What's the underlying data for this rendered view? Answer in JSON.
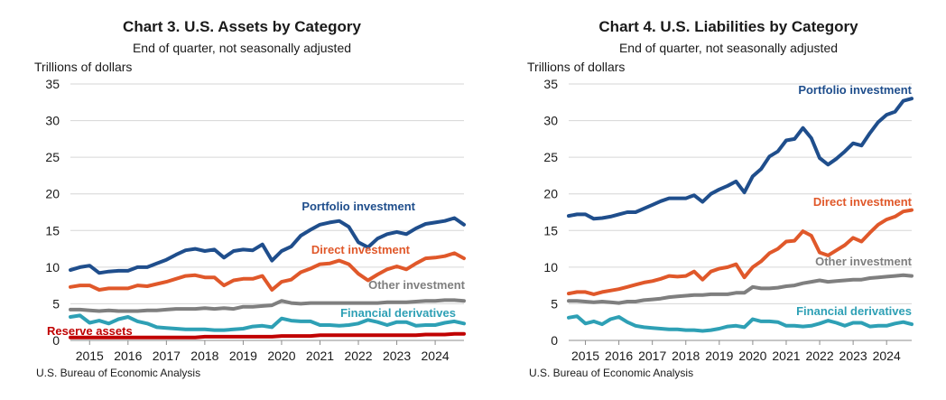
{
  "chart_data": [
    {
      "type": "line",
      "title": "Chart 3. U.S. Assets by Category",
      "subtitle": "End of quarter, not seasonally adjusted",
      "ylabel": "Trillions of dollars",
      "source": "U.S. Bureau of Economic Analysis",
      "ylim": [
        0,
        35
      ],
      "yticks": [
        0,
        5,
        10,
        15,
        20,
        25,
        30,
        35
      ],
      "xlim": [
        2014.5,
        2024.75
      ],
      "xticks": [
        2015,
        2016,
        2017,
        2018,
        2019,
        2020,
        2021,
        2022,
        2023,
        2024
      ],
      "grid": true,
      "series": [
        {
          "name": "Portfolio investment",
          "color": "#1f4e8c",
          "x": [
            2014.5,
            2014.75,
            2015.0,
            2015.25,
            2015.5,
            2015.75,
            2016.0,
            2016.25,
            2016.5,
            2016.75,
            2017.0,
            2017.25,
            2017.5,
            2017.75,
            2018.0,
            2018.25,
            2018.5,
            2018.75,
            2019.0,
            2019.25,
            2019.5,
            2019.75,
            2020.0,
            2020.25,
            2020.5,
            2020.75,
            2021.0,
            2021.25,
            2021.5,
            2021.75,
            2022.0,
            2022.25,
            2022.5,
            2022.75,
            2023.0,
            2023.25,
            2023.5,
            2023.75,
            2024.0,
            2024.25,
            2024.5,
            2024.75
          ],
          "y": [
            9.6,
            10.0,
            10.2,
            9.2,
            9.4,
            9.5,
            9.5,
            10.0,
            10.0,
            10.5,
            11.0,
            11.7,
            12.3,
            12.5,
            12.2,
            12.4,
            11.3,
            12.2,
            12.4,
            12.3,
            13.1,
            10.9,
            12.2,
            12.8,
            14.3,
            15.1,
            15.8,
            16.1,
            16.3,
            15.5,
            13.4,
            12.7,
            13.9,
            14.5,
            14.8,
            14.5,
            15.3,
            15.9,
            16.1,
            16.3,
            16.7,
            15.8
          ]
        },
        {
          "name": "Direct investment",
          "color": "#e0582a",
          "x": [
            2014.5,
            2014.75,
            2015.0,
            2015.25,
            2015.5,
            2015.75,
            2016.0,
            2016.25,
            2016.5,
            2016.75,
            2017.0,
            2017.25,
            2017.5,
            2017.75,
            2018.0,
            2018.25,
            2018.5,
            2018.75,
            2019.0,
            2019.25,
            2019.5,
            2019.75,
            2020.0,
            2020.25,
            2020.5,
            2020.75,
            2021.0,
            2021.25,
            2021.5,
            2021.75,
            2022.0,
            2022.25,
            2022.5,
            2022.75,
            2023.0,
            2023.25,
            2023.5,
            2023.75,
            2024.0,
            2024.25,
            2024.5,
            2024.75
          ],
          "y": [
            7.3,
            7.5,
            7.5,
            6.9,
            7.1,
            7.1,
            7.1,
            7.5,
            7.4,
            7.7,
            8.0,
            8.4,
            8.8,
            8.9,
            8.6,
            8.6,
            7.5,
            8.2,
            8.4,
            8.4,
            8.8,
            6.9,
            8.0,
            8.3,
            9.3,
            9.8,
            10.4,
            10.5,
            10.9,
            10.4,
            9.1,
            8.2,
            9.0,
            9.7,
            10.1,
            9.7,
            10.5,
            11.2,
            11.3,
            11.5,
            11.9,
            11.2
          ]
        },
        {
          "name": "Other investment",
          "color": "#7f7f7f",
          "x": [
            2014.5,
            2014.75,
            2015.0,
            2015.25,
            2015.5,
            2015.75,
            2016.0,
            2016.25,
            2016.5,
            2016.75,
            2017.0,
            2017.25,
            2017.5,
            2017.75,
            2018.0,
            2018.25,
            2018.5,
            2018.75,
            2019.0,
            2019.25,
            2019.5,
            2019.75,
            2020.0,
            2020.25,
            2020.5,
            2020.75,
            2021.0,
            2021.25,
            2021.5,
            2021.75,
            2022.0,
            2022.25,
            2022.5,
            2022.75,
            2023.0,
            2023.25,
            2023.5,
            2023.75,
            2024.0,
            2024.25,
            2024.5,
            2024.75
          ],
          "y": [
            4.2,
            4.2,
            4.1,
            4.0,
            4.1,
            4.0,
            4.0,
            4.0,
            4.1,
            4.1,
            4.2,
            4.3,
            4.3,
            4.3,
            4.4,
            4.3,
            4.4,
            4.3,
            4.6,
            4.6,
            4.7,
            4.8,
            5.4,
            5.1,
            5.0,
            5.1,
            5.1,
            5.1,
            5.1,
            5.1,
            5.1,
            5.1,
            5.1,
            5.2,
            5.2,
            5.2,
            5.3,
            5.4,
            5.4,
            5.5,
            5.5,
            5.4
          ]
        },
        {
          "name": "Financial derivatives",
          "color": "#2ea0b5",
          "x": [
            2014.5,
            2014.75,
            2015.0,
            2015.25,
            2015.5,
            2015.75,
            2016.0,
            2016.25,
            2016.5,
            2016.75,
            2017.0,
            2017.25,
            2017.5,
            2017.75,
            2018.0,
            2018.25,
            2018.5,
            2018.75,
            2019.0,
            2019.25,
            2019.5,
            2019.75,
            2020.0,
            2020.25,
            2020.5,
            2020.75,
            2021.0,
            2021.25,
            2021.5,
            2021.75,
            2022.0,
            2022.25,
            2022.5,
            2022.75,
            2023.0,
            2023.25,
            2023.5,
            2023.75,
            2024.0,
            2024.25,
            2024.5,
            2024.75
          ],
          "y": [
            3.2,
            3.4,
            2.4,
            2.7,
            2.3,
            2.9,
            3.2,
            2.6,
            2.3,
            1.8,
            1.7,
            1.6,
            1.5,
            1.5,
            1.5,
            1.4,
            1.4,
            1.5,
            1.6,
            1.9,
            2.0,
            1.8,
            3.0,
            2.7,
            2.6,
            2.6,
            2.1,
            2.1,
            2.0,
            2.1,
            2.3,
            2.8,
            2.5,
            2.1,
            2.5,
            2.5,
            2.0,
            2.1,
            2.1,
            2.4,
            2.6,
            2.3
          ]
        },
        {
          "name": "Reserve assets",
          "color": "#c00000",
          "x": [
            2014.5,
            2014.75,
            2015.0,
            2015.25,
            2015.5,
            2015.75,
            2016.0,
            2016.25,
            2016.5,
            2016.75,
            2017.0,
            2017.25,
            2017.5,
            2017.75,
            2018.0,
            2018.25,
            2018.5,
            2018.75,
            2019.0,
            2019.25,
            2019.5,
            2019.75,
            2020.0,
            2020.25,
            2020.5,
            2020.75,
            2021.0,
            2021.25,
            2021.5,
            2021.75,
            2022.0,
            2022.25,
            2022.5,
            2022.75,
            2023.0,
            2023.25,
            2023.5,
            2023.75,
            2024.0,
            2024.25,
            2024.5,
            2024.75
          ],
          "y": [
            0.4,
            0.4,
            0.4,
            0.4,
            0.4,
            0.4,
            0.4,
            0.4,
            0.4,
            0.4,
            0.4,
            0.4,
            0.4,
            0.4,
            0.5,
            0.5,
            0.5,
            0.5,
            0.5,
            0.5,
            0.5,
            0.5,
            0.6,
            0.6,
            0.6,
            0.6,
            0.7,
            0.7,
            0.7,
            0.7,
            0.7,
            0.7,
            0.7,
            0.7,
            0.7,
            0.7,
            0.7,
            0.8,
            0.8,
            0.8,
            0.9,
            0.9
          ]
        }
      ]
    },
    {
      "type": "line",
      "title": "Chart 4. U.S. Liabilities by Category",
      "subtitle": "End of quarter, not seasonally adjusted",
      "ylabel": "Trillions of dollars",
      "source": "U.S. Bureau of Economic Analysis",
      "ylim": [
        0,
        35
      ],
      "yticks": [
        0,
        5,
        10,
        15,
        20,
        25,
        30,
        35
      ],
      "xlim": [
        2014.5,
        2024.75
      ],
      "xticks": [
        2015,
        2016,
        2017,
        2018,
        2019,
        2020,
        2021,
        2022,
        2023,
        2024
      ],
      "grid": true,
      "series": [
        {
          "name": "Portfolio investment",
          "color": "#1f4e8c",
          "x": [
            2014.5,
            2014.75,
            2015.0,
            2015.25,
            2015.5,
            2015.75,
            2016.0,
            2016.25,
            2016.5,
            2016.75,
            2017.0,
            2017.25,
            2017.5,
            2017.75,
            2018.0,
            2018.25,
            2018.5,
            2018.75,
            2019.0,
            2019.25,
            2019.5,
            2019.75,
            2020.0,
            2020.25,
            2020.5,
            2020.75,
            2021.0,
            2021.25,
            2021.5,
            2021.75,
            2022.0,
            2022.25,
            2022.5,
            2022.75,
            2023.0,
            2023.25,
            2023.5,
            2023.75,
            2024.0,
            2024.25,
            2024.5,
            2024.75
          ],
          "y": [
            17.0,
            17.2,
            17.2,
            16.6,
            16.7,
            16.9,
            17.2,
            17.5,
            17.5,
            18.0,
            18.5,
            19.0,
            19.4,
            19.4,
            19.4,
            19.8,
            18.9,
            20.0,
            20.6,
            21.1,
            21.7,
            20.2,
            22.4,
            23.4,
            25.1,
            25.8,
            27.3,
            27.5,
            29.0,
            27.6,
            24.9,
            24.0,
            24.8,
            25.8,
            26.9,
            26.6,
            28.3,
            29.8,
            30.8,
            31.2,
            32.7,
            33.0
          ]
        },
        {
          "name": "Direct investment",
          "color": "#e0582a",
          "x": [
            2014.5,
            2014.75,
            2015.0,
            2015.25,
            2015.5,
            2015.75,
            2016.0,
            2016.25,
            2016.5,
            2016.75,
            2017.0,
            2017.25,
            2017.5,
            2017.75,
            2018.0,
            2018.25,
            2018.5,
            2018.75,
            2019.0,
            2019.25,
            2019.5,
            2019.75,
            2020.0,
            2020.25,
            2020.5,
            2020.75,
            2021.0,
            2021.25,
            2021.5,
            2021.75,
            2022.0,
            2022.25,
            2022.5,
            2022.75,
            2023.0,
            2023.25,
            2023.5,
            2023.75,
            2024.0,
            2024.25,
            2024.5,
            2024.75
          ],
          "y": [
            6.4,
            6.6,
            6.6,
            6.3,
            6.6,
            6.8,
            7.0,
            7.3,
            7.6,
            7.9,
            8.1,
            8.4,
            8.8,
            8.7,
            8.8,
            9.4,
            8.3,
            9.4,
            9.8,
            10.0,
            10.4,
            8.6,
            10.0,
            10.8,
            11.9,
            12.5,
            13.5,
            13.6,
            14.9,
            14.3,
            12.0,
            11.6,
            12.3,
            13.0,
            14.0,
            13.5,
            14.7,
            15.8,
            16.5,
            16.9,
            17.6,
            17.8
          ]
        },
        {
          "name": "Other investment",
          "color": "#7f7f7f",
          "x": [
            2014.5,
            2014.75,
            2015.0,
            2015.25,
            2015.5,
            2015.75,
            2016.0,
            2016.25,
            2016.5,
            2016.75,
            2017.0,
            2017.25,
            2017.5,
            2017.75,
            2018.0,
            2018.25,
            2018.5,
            2018.75,
            2019.0,
            2019.25,
            2019.5,
            2019.75,
            2020.0,
            2020.25,
            2020.5,
            2020.75,
            2021.0,
            2021.25,
            2021.5,
            2021.75,
            2022.0,
            2022.25,
            2022.5,
            2022.75,
            2023.0,
            2023.25,
            2023.5,
            2023.75,
            2024.0,
            2024.25,
            2024.5,
            2024.75
          ],
          "y": [
            5.4,
            5.4,
            5.3,
            5.2,
            5.3,
            5.2,
            5.1,
            5.3,
            5.3,
            5.5,
            5.6,
            5.7,
            5.9,
            6.0,
            6.1,
            6.2,
            6.2,
            6.3,
            6.3,
            6.3,
            6.5,
            6.5,
            7.3,
            7.1,
            7.1,
            7.2,
            7.4,
            7.5,
            7.8,
            8.0,
            8.2,
            8.0,
            8.1,
            8.2,
            8.3,
            8.3,
            8.5,
            8.6,
            8.7,
            8.8,
            8.9,
            8.8
          ]
        },
        {
          "name": "Financial derivatives",
          "color": "#2ea0b5",
          "x": [
            2014.5,
            2014.75,
            2015.0,
            2015.25,
            2015.5,
            2015.75,
            2016.0,
            2016.25,
            2016.5,
            2016.75,
            2017.0,
            2017.25,
            2017.5,
            2017.75,
            2018.0,
            2018.25,
            2018.5,
            2018.75,
            2019.0,
            2019.25,
            2019.5,
            2019.75,
            2020.0,
            2020.25,
            2020.5,
            2020.75,
            2021.0,
            2021.25,
            2021.5,
            2021.75,
            2022.0,
            2022.25,
            2022.5,
            2022.75,
            2023.0,
            2023.25,
            2023.5,
            2023.75,
            2024.0,
            2024.25,
            2024.5,
            2024.75
          ],
          "y": [
            3.1,
            3.3,
            2.3,
            2.6,
            2.2,
            2.9,
            3.2,
            2.5,
            2.0,
            1.8,
            1.7,
            1.6,
            1.5,
            1.5,
            1.4,
            1.4,
            1.3,
            1.4,
            1.6,
            1.9,
            2.0,
            1.8,
            2.9,
            2.6,
            2.6,
            2.5,
            2.0,
            2.0,
            1.9,
            2.0,
            2.3,
            2.7,
            2.4,
            2.0,
            2.4,
            2.4,
            1.9,
            2.0,
            2.0,
            2.3,
            2.5,
            2.2
          ]
        }
      ]
    }
  ]
}
